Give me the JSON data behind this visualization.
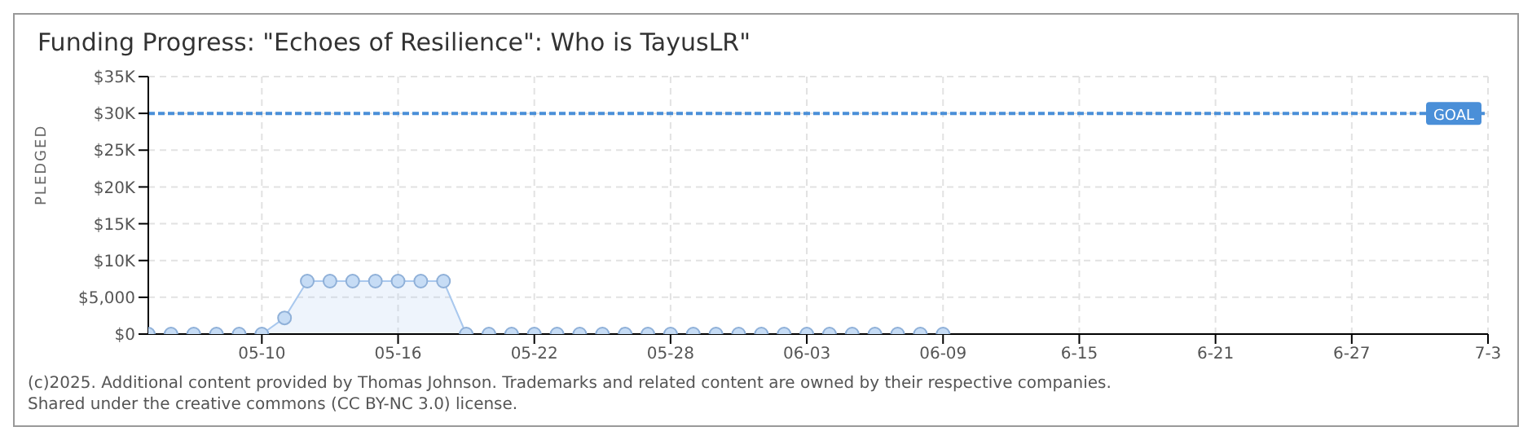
{
  "chart_data": {
    "type": "area",
    "title": "Funding Progress: \"Echoes of Resilience\": Who is TayusLR\"",
    "ylabel": "PLEDGED",
    "x": [
      "--05-05",
      "--05-06",
      "--05-07",
      "--05-08",
      "--05-09",
      "--05-10",
      "--05-11",
      "--05-12",
      "--05-13",
      "--05-14",
      "--05-15",
      "--05-16",
      "--05-17",
      "--05-18",
      "--05-19",
      "--05-20",
      "--05-21",
      "--05-22",
      "--05-23",
      "--05-24",
      "--05-25",
      "--05-26",
      "--05-27",
      "--05-28",
      "--05-29",
      "--05-30",
      "--05-31",
      "--06-01",
      "--06-02",
      "--06-03",
      "--06-04",
      "--06-05",
      "--06-06",
      "--06-07",
      "--06-08",
      "--06-09"
    ],
    "series": [
      {
        "color": "#a9c8ee",
        "values": [
          0,
          0,
          0,
          0,
          0,
          0,
          2200,
          7200,
          7200,
          7200,
          7200,
          7200,
          7200,
          7200,
          0,
          0,
          0,
          0,
          0,
          0,
          0,
          0,
          0,
          0,
          0,
          0,
          0,
          0,
          0,
          0,
          0,
          0,
          0,
          0,
          0,
          0
        ]
      }
    ],
    "xlim": [
      "--05-05",
      "--07-03"
    ],
    "xticks": [
      {
        "value": "--05-10",
        "label": "05-10"
      },
      {
        "value": "--05-16",
        "label": "05-16"
      },
      {
        "value": "--05-22",
        "label": "05-22"
      },
      {
        "value": "--05-28",
        "label": "05-28"
      },
      {
        "value": "--06-03",
        "label": "06-03"
      },
      {
        "value": "--06-09",
        "label": "06-09"
      },
      {
        "value": "--06-15",
        "label": "6-15"
      },
      {
        "value": "--06-21",
        "label": "6-21"
      },
      {
        "value": "--06-27",
        "label": "6-27"
      },
      {
        "value": "--07-03",
        "label": "7-3"
      }
    ],
    "ylim": [
      0,
      35000
    ],
    "yticks": [
      {
        "value": 0,
        "label": "$0"
      },
      {
        "value": 5000,
        "label": "$5,000"
      },
      {
        "value": 10000,
        "label": "$10K"
      },
      {
        "value": 15000,
        "label": "$15K"
      },
      {
        "value": 20000,
        "label": "$20K"
      },
      {
        "value": 25000,
        "label": "$25K"
      },
      {
        "value": 30000,
        "label": "$30K"
      },
      {
        "value": 35000,
        "label": "$35K"
      }
    ],
    "ref_lines": [
      {
        "axis": "y",
        "value": 30000,
        "label": "GOAL",
        "color": "#4a8fd8",
        "line_style": "dashed"
      }
    ],
    "grid": true,
    "marker": "circle",
    "legend": false,
    "annotations": [
      "(c)2025. Additional content provided by Thomas Johnson. Trademarks and related content are owned by their respective companies.",
      "Shared under the creative commons (CC BY-NC 3.0) license."
    ]
  }
}
